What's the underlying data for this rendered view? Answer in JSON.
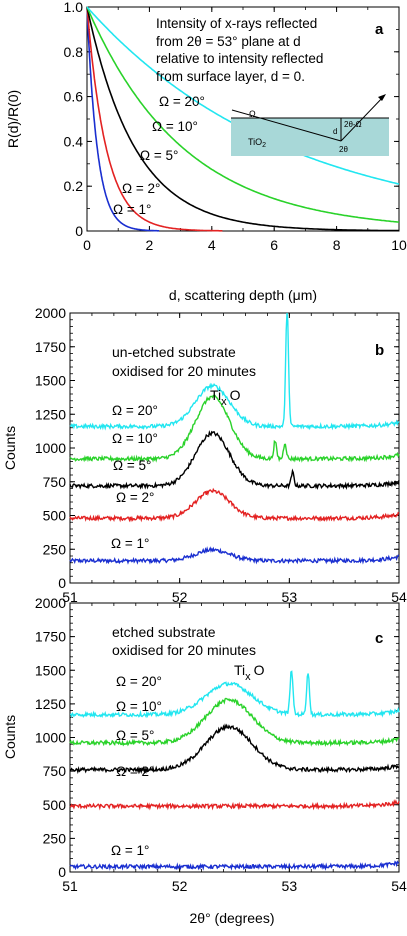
{
  "chart_data": [
    {
      "panel": "a",
      "type": "line",
      "ylabel": "R(d)/R(0)",
      "xlabel": "d, scattering depth  (μm)",
      "xlim": [
        0,
        10
      ],
      "ylim": [
        0,
        1.0
      ],
      "x_ticks": [
        "0",
        "2",
        "4",
        "6",
        "8",
        "10"
      ],
      "y_ticks": [
        "0",
        "0.2",
        "0.4",
        "0.6",
        "0.8",
        "1.0"
      ],
      "annotation": [
        "Intensity of x-rays reflected",
        "from 2θ = 53° plane at d",
        "relative to intensity reflected",
        "from surface layer, d = 0."
      ],
      "inset_labels": {
        "omega": "Ω",
        "layer": "TiO",
        "layer_sub": "2",
        "depth": "d",
        "angle_diff": "2θ-Ω",
        "two_theta": "2θ"
      },
      "inset_color": "#a8d8d8",
      "series": [
        {
          "label": "Ω = 1°",
          "color": "#1a2fd0",
          "decay_length_um": 0.33,
          "x": [
            0,
            0.25,
            0.5,
            0.75,
            1.0,
            1.25,
            1.5
          ],
          "y": [
            1.0,
            0.47,
            0.22,
            0.1,
            0.05,
            0.02,
            0.01
          ]
        },
        {
          "label": "Ω = 2°",
          "color": "#e32222",
          "decay_length_um": 0.62,
          "x": [
            0,
            0.5,
            1.0,
            1.5,
            2.0,
            2.5,
            3.0
          ],
          "y": [
            1.0,
            0.45,
            0.2,
            0.09,
            0.04,
            0.02,
            0.01
          ]
        },
        {
          "label": "Ω = 5°",
          "color": "#000000",
          "decay_length_um": 1.55,
          "x": [
            0,
            1,
            2,
            3,
            4,
            5,
            6,
            7,
            8
          ],
          "y": [
            1.0,
            0.52,
            0.28,
            0.14,
            0.08,
            0.04,
            0.02,
            0.01,
            0.01
          ]
        },
        {
          "label": "Ω = 10°",
          "color": "#2ad22a",
          "decay_length_um": 3.1,
          "x": [
            0,
            2,
            4,
            6,
            8,
            10
          ],
          "y": [
            1.0,
            0.52,
            0.28,
            0.14,
            0.07,
            0.04
          ]
        },
        {
          "label": "Ω = 20°",
          "color": "#22e6f0",
          "decay_length_um": 6.4,
          "x": [
            0,
            2,
            4,
            6,
            8,
            10
          ],
          "y": [
            1.0,
            0.73,
            0.53,
            0.39,
            0.28,
            0.21
          ]
        }
      ]
    },
    {
      "panel": "b",
      "type": "line",
      "ylabel": "Counts",
      "xlabel": "",
      "xlim": [
        51,
        54
      ],
      "ylim": [
        0,
        2000
      ],
      "x_ticks": [
        "51",
        "52",
        "53",
        "54"
      ],
      "y_ticks": [
        "0",
        "250",
        "500",
        "750",
        "1000",
        "1250",
        "1500",
        "1750",
        "2000"
      ],
      "annotation": [
        "un-etched substrate",
        "oxidised for 20 minutes"
      ],
      "peak_label": "Ti",
      "peak_label_sub": "x",
      "peak_label_suffix": "O",
      "series": [
        {
          "label": "Ω = 1°",
          "color": "#1a2fd0",
          "baseline": 165,
          "peak_amp": 80,
          "sharp_peaks": []
        },
        {
          "label": "Ω = 2°",
          "color": "#e32222",
          "baseline": 480,
          "peak_amp": 200,
          "sharp_peaks": []
        },
        {
          "label": "Ω = 5°",
          "color": "#000000",
          "baseline": 720,
          "peak_amp": 390,
          "sharp_peaks": [
            {
              "x": 53.03,
              "h": 100
            }
          ]
        },
        {
          "label": "Ω = 10°",
          "color": "#2ad22a",
          "baseline": 920,
          "peak_amp": 460,
          "sharp_peaks": [
            {
              "x": 52.87,
              "h": 130
            },
            {
              "x": 52.96,
              "h": 120
            }
          ]
        },
        {
          "label": "Ω = 20°",
          "color": "#22e6f0",
          "baseline": 1160,
          "peak_amp": 300,
          "sharp_peaks": [
            {
              "x": 52.98,
              "h": 880
            }
          ]
        }
      ]
    },
    {
      "panel": "c",
      "type": "line",
      "ylabel": "Counts",
      "xlabel": "2θ°  (degrees)",
      "xlim": [
        51,
        54
      ],
      "ylim": [
        0,
        2000
      ],
      "x_ticks": [
        "51",
        "52",
        "53",
        "54"
      ],
      "y_ticks": [
        "0",
        "250",
        "500",
        "750",
        "1000",
        "1250",
        "1500",
        "1750",
        "2000"
      ],
      "annotation": [
        "etched substrate",
        "oxidised for 20 minutes"
      ],
      "peak_label": "Ti",
      "peak_label_sub": "x",
      "peak_label_suffix": "O",
      "series": [
        {
          "label": "Ω = 1°",
          "color": "#1a2fd0",
          "baseline": 40,
          "peak_amp": 0,
          "sharp_peaks": []
        },
        {
          "label": "Ω = 2°",
          "color": "#e32222",
          "baseline": 490,
          "peak_amp": 0,
          "sharp_peaks": []
        },
        {
          "label": "Ω = 5°",
          "color": "#000000",
          "baseline": 760,
          "peak_amp": 320,
          "sharp_peaks": []
        },
        {
          "label": "Ω = 10°",
          "color": "#2ad22a",
          "baseline": 960,
          "peak_amp": 320,
          "sharp_peaks": []
        },
        {
          "label": "Ω = 20°",
          "color": "#22e6f0",
          "baseline": 1170,
          "peak_amp": 230,
          "sharp_peaks": [
            {
              "x": 53.02,
              "h": 330
            },
            {
              "x": 53.17,
              "h": 320
            }
          ]
        }
      ]
    }
  ]
}
